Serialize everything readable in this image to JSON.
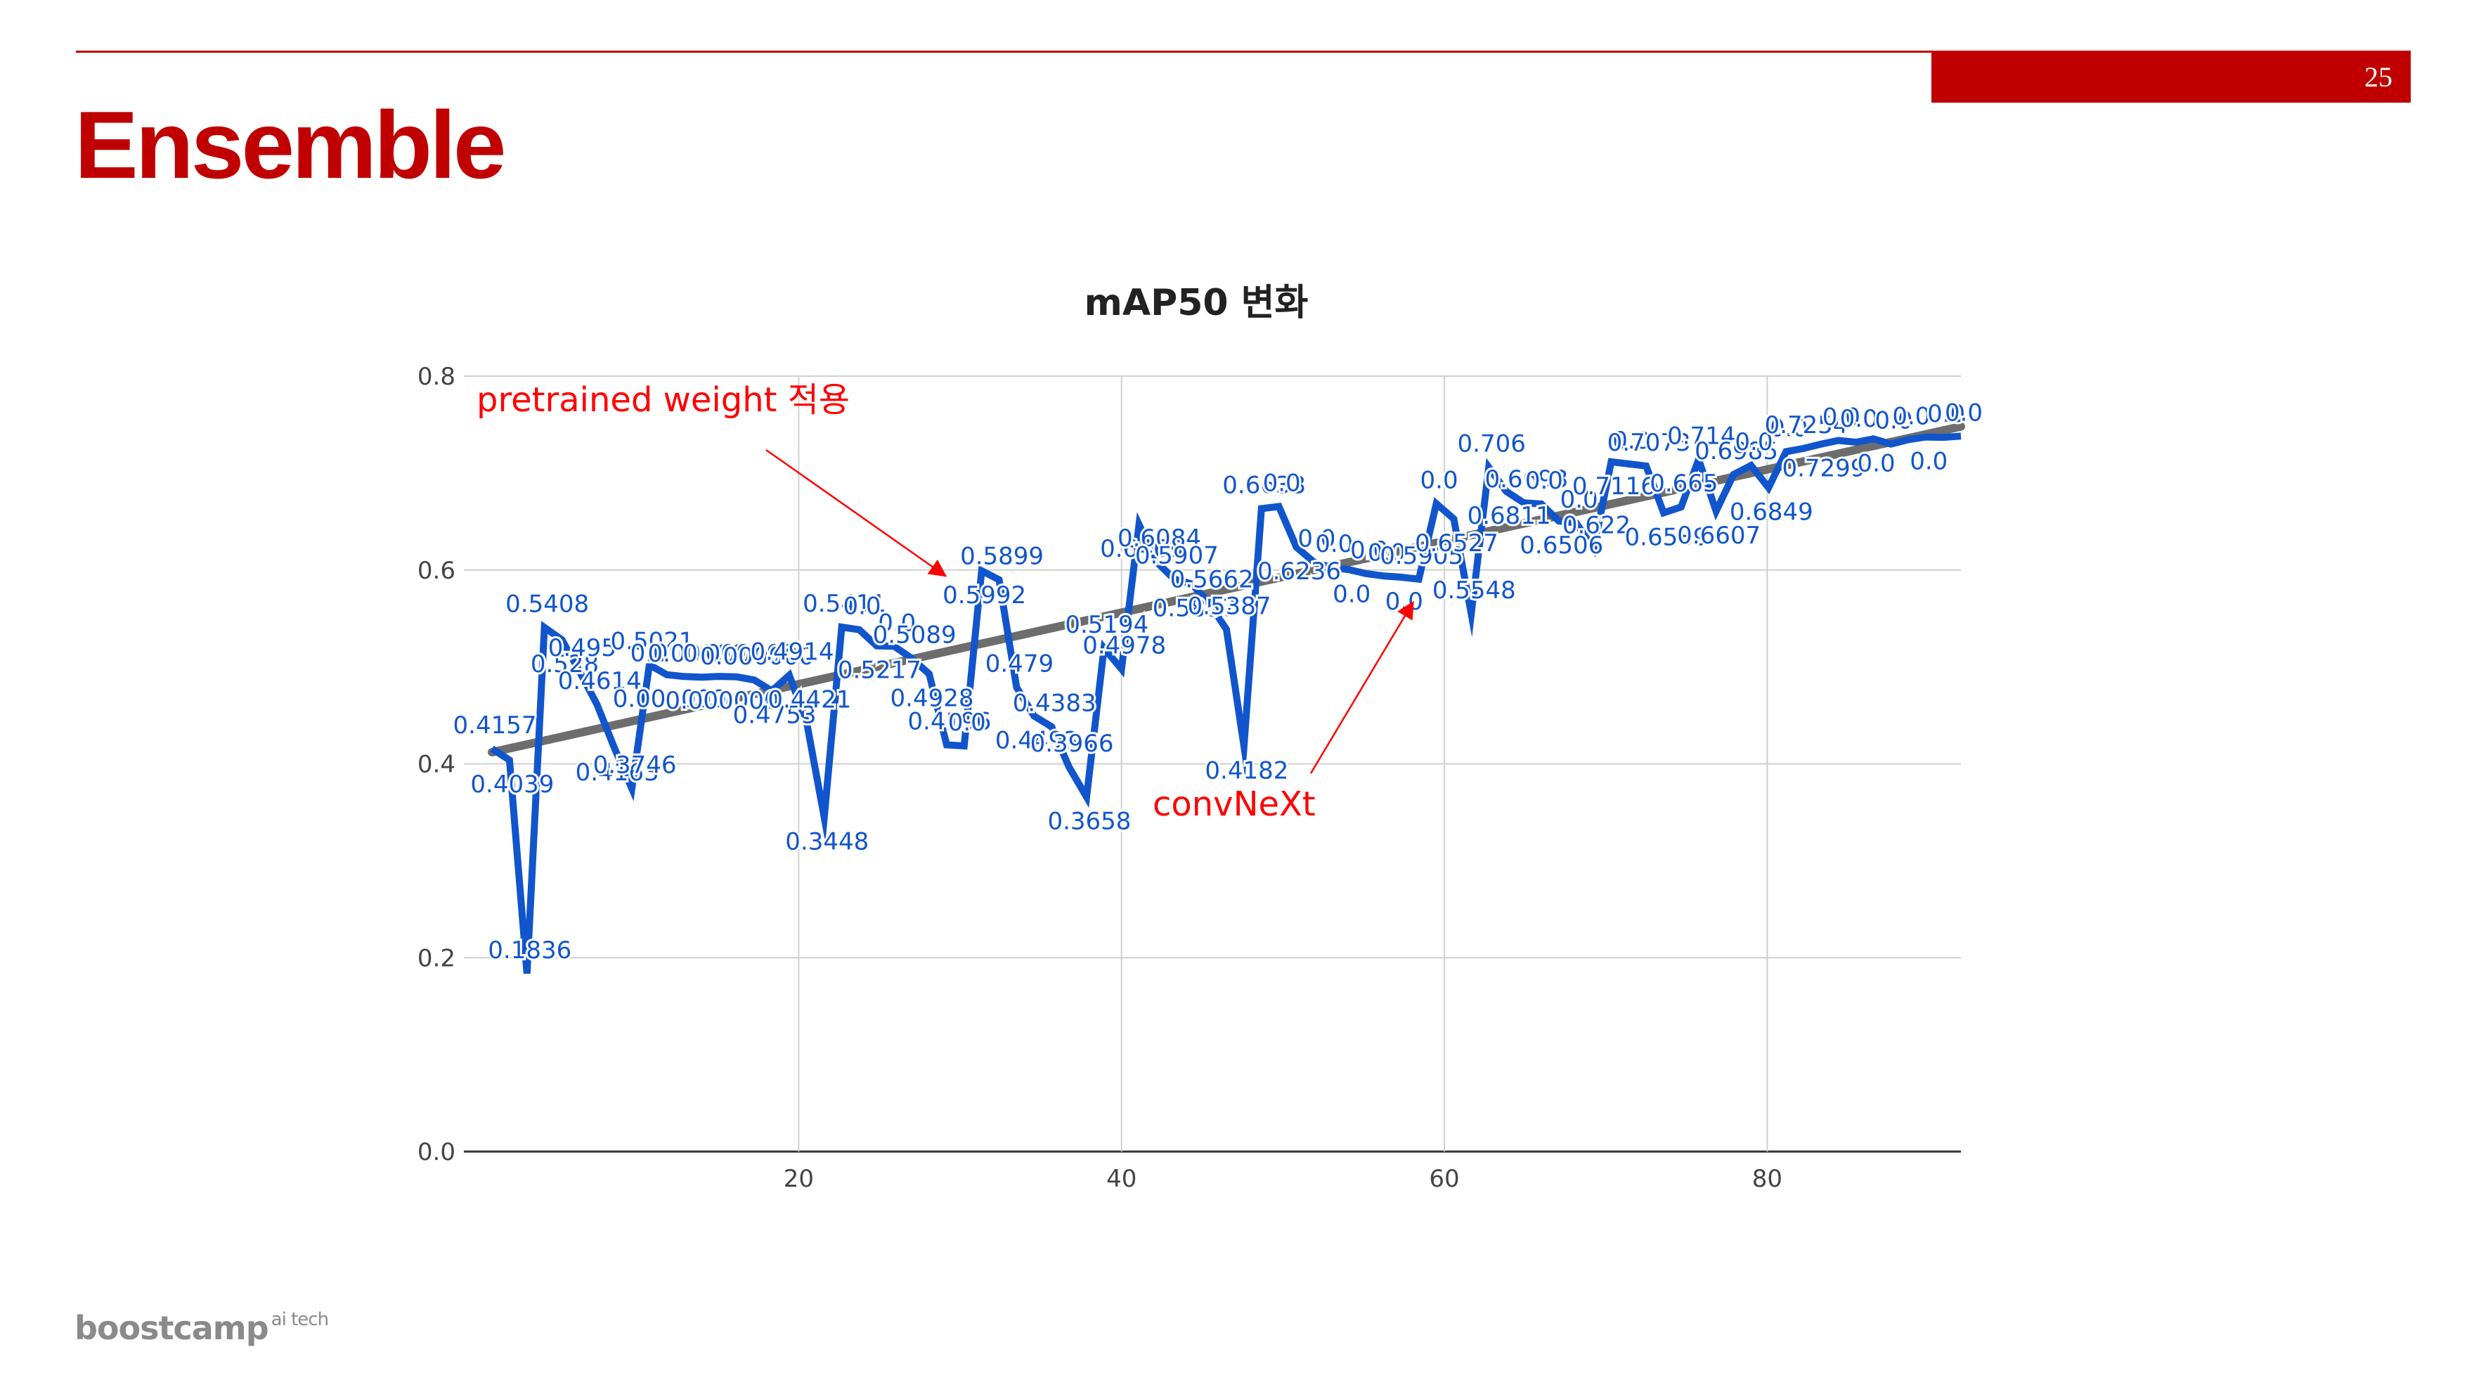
{
  "slide": {
    "page_number": "25",
    "title": "Ensemble",
    "footer_brand": "boostcamp",
    "footer_sup": "ai tech"
  },
  "colors": {
    "accent": "#c00000",
    "series": "#1155cc",
    "trend": "#666666",
    "annotation": "#ff0000"
  },
  "chart_data": {
    "type": "line",
    "title": "mAP50 변화",
    "xlabel": "",
    "ylabel": "",
    "xlim": [
      1,
      92
    ],
    "ylim": [
      0,
      0.8
    ],
    "x_ticks": [
      "20",
      "40",
      "60",
      "80"
    ],
    "y_ticks": [
      "0.0",
      "0.2",
      "0.4",
      "0.6",
      "0.8"
    ],
    "grid": true,
    "legend": "none",
    "trendline": {
      "type": "linear",
      "start": [
        1,
        0.412
      ],
      "end": [
        92,
        0.748
      ]
    },
    "series": [
      {
        "values": [
          0.4157,
          0.4039,
          0.1836,
          0.5408,
          0.528,
          0.4955,
          0.4614,
          0.4163,
          0.3746,
          0.5021,
          0.492,
          0.4901,
          0.4894,
          0.4902,
          0.4897,
          0.4865,
          0.4753,
          0.4914,
          0.4421,
          0.3448,
          0.5411,
          0.5384,
          0.5217,
          0.5213,
          0.5089,
          0.4928,
          0.4196,
          0.4185,
          0.5992,
          0.5899,
          0.479,
          0.4493,
          0.4383,
          0.3966,
          0.3658,
          0.5194,
          0.4978,
          0.6469,
          0.6084,
          0.5907,
          0.5857,
          0.5662,
          0.5387,
          0.4182,
          0.6633,
          0.6655,
          0.6236,
          0.6081,
          0.6027,
          0.6003,
          0.5962,
          0.5938,
          0.5926,
          0.5905,
          0.6684,
          0.6527,
          0.5548,
          0.706,
          0.6811,
          0.6693,
          0.6681,
          0.6506,
          0.6485,
          0.622,
          0.7116,
          0.7094,
          0.7073,
          0.6589,
          0.665,
          0.714,
          0.6607,
          0.6985,
          0.7078,
          0.6849,
          0.7221,
          0.7254,
          0.7299,
          0.7336,
          0.7318,
          0.7352,
          0.7299,
          0.7345,
          0.7372,
          0.7368,
          0.7381
        ]
      }
    ],
    "point_labels": [
      "0.4157",
      "0.4039",
      "0.1836",
      "0.5408",
      "0.528",
      "0.495",
      "0.4614",
      "0.4163",
      "0.3746",
      "0.5021",
      "0.000000",
      "0.000000",
      "0.000000",
      "0.000000",
      "0.000000",
      "0.000000",
      "0.4753",
      "0.4914",
      "0.4421",
      "0.3448",
      "0.5411",
      "0.0",
      "0.5217",
      "0.0",
      "0.5089",
      "0.4928",
      "0.4196",
      "0.0",
      "0.5992",
      "0.5899",
      "0.479",
      "0.4493",
      "0.4383",
      "0.3966",
      "0.3658",
      "0.5194",
      "0.4978",
      "0.6469",
      "0.6084",
      "0.5907",
      "0.5857",
      "0.5662",
      "0.5387",
      "0.4182",
      "0.6633",
      "0.0",
      "0.6236",
      "0.0",
      "0.0",
      "0.0",
      "0.0",
      "0.0",
      "0.0",
      "0.5905",
      "0.0",
      "0.6527",
      "0.5548",
      "0.706",
      "0.6811",
      "0.6693",
      "0.0",
      "0.6506",
      "0.0",
      "0.622",
      "0.7116",
      "0.0",
      "0.7073",
      "0.6589",
      "0.665",
      "0.714",
      "0.6607",
      "0.6985",
      "0.0",
      "0.6849",
      "0.0",
      "0.7254",
      "0.7299",
      "0.0",
      "0.0",
      "0.0",
      "0.0",
      "0.0",
      "0.0",
      "0.0",
      "0.0"
    ],
    "annotations": [
      {
        "text": "pretrained weight 적용",
        "point_to_x": 29,
        "point_to_y": 0.595
      },
      {
        "text": "convNeXt",
        "point_to_x": 58,
        "point_to_y": 0.565
      }
    ]
  }
}
